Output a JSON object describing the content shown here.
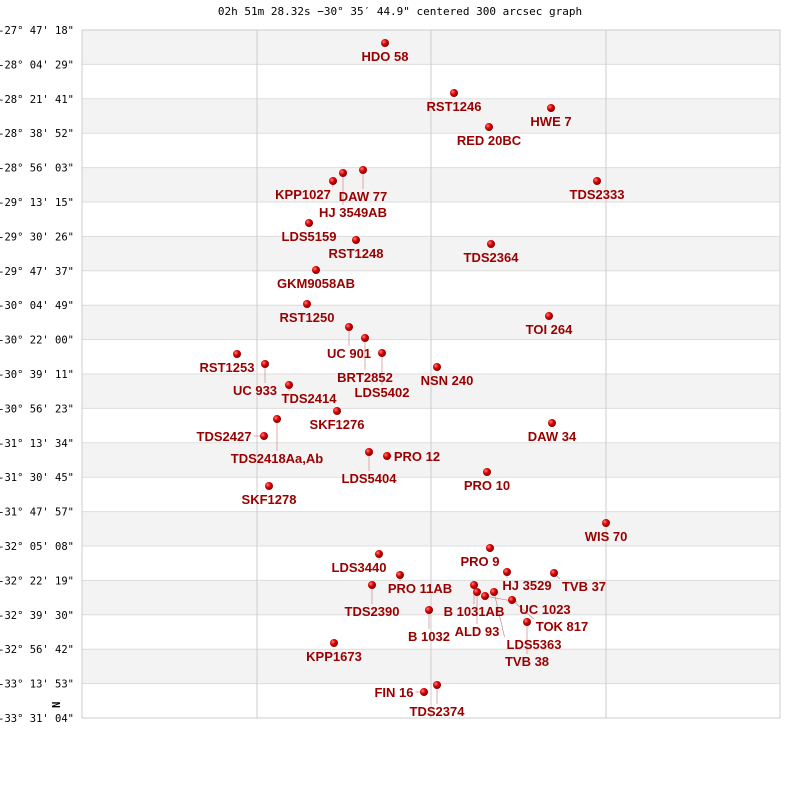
{
  "title": "02h 51m 28.32s −30° 35′ 44.9\" centered 300 arcsec graph",
  "chart_data": {
    "type": "scatter",
    "title": "02h 51m 28.32s −30° 35′ 44.9\" centered 300 arcsec graph",
    "y_tick_labels": [
      "-27° 47' 18\"",
      "-28° 04' 29\"",
      "-28° 21' 41\"",
      "-28° 38' 52\"",
      "-28° 56' 03\"",
      "-29° 13' 15\"",
      "-29° 30' 26\"",
      "-29° 47' 37\"",
      "-30° 04' 49\"",
      "-30° 22' 00\"",
      "-30° 39' 11\"",
      "-30° 56' 23\"",
      "-31° 13' 34\"",
      "-31° 30' 45\"",
      "-31° 47' 57\"",
      "-32° 05' 08\"",
      "-32° 22' 19\"",
      "-32° 39' 30\"",
      "-32° 56' 42\"",
      "-33° 13' 53\"",
      "-33° 31' 04\""
    ],
    "north_marker": "N",
    "grid": true,
    "marker_color": "#dd0000",
    "label_color": "#990000",
    "stars": [
      "HDO  58",
      "RST1246",
      "HWE   7",
      "RED  20BC",
      "DAW  77",
      "HJ 3549AB",
      "KPP1027",
      "TDS2333",
      "LDS5159",
      "RST1248",
      "TDS2364",
      "GKM9058AB",
      "RST1250",
      "TOI 264",
      "UC  901",
      "BRT2852",
      "LDS5402",
      "NSN 240",
      "RST1253",
      "UC  933",
      "TDS2414",
      "SKF1276",
      "TDS2418Aa,Ab",
      "TDS2427",
      "DAW  34",
      "LDS5404",
      "PRO  12",
      "PRO  10",
      "SKF1278",
      "WIS  70",
      "PRO   9",
      "LDS3440",
      "PRO  11AB",
      "TDS2390",
      "HJ 3529",
      "TVB  37",
      "B  1031AB",
      "ALD  93",
      "UC 1023",
      "LDS5363",
      "TOK 817",
      "B  1032",
      "TVB  38",
      "KPP1673",
      "TDS2374",
      "FIN  16"
    ]
  }
}
